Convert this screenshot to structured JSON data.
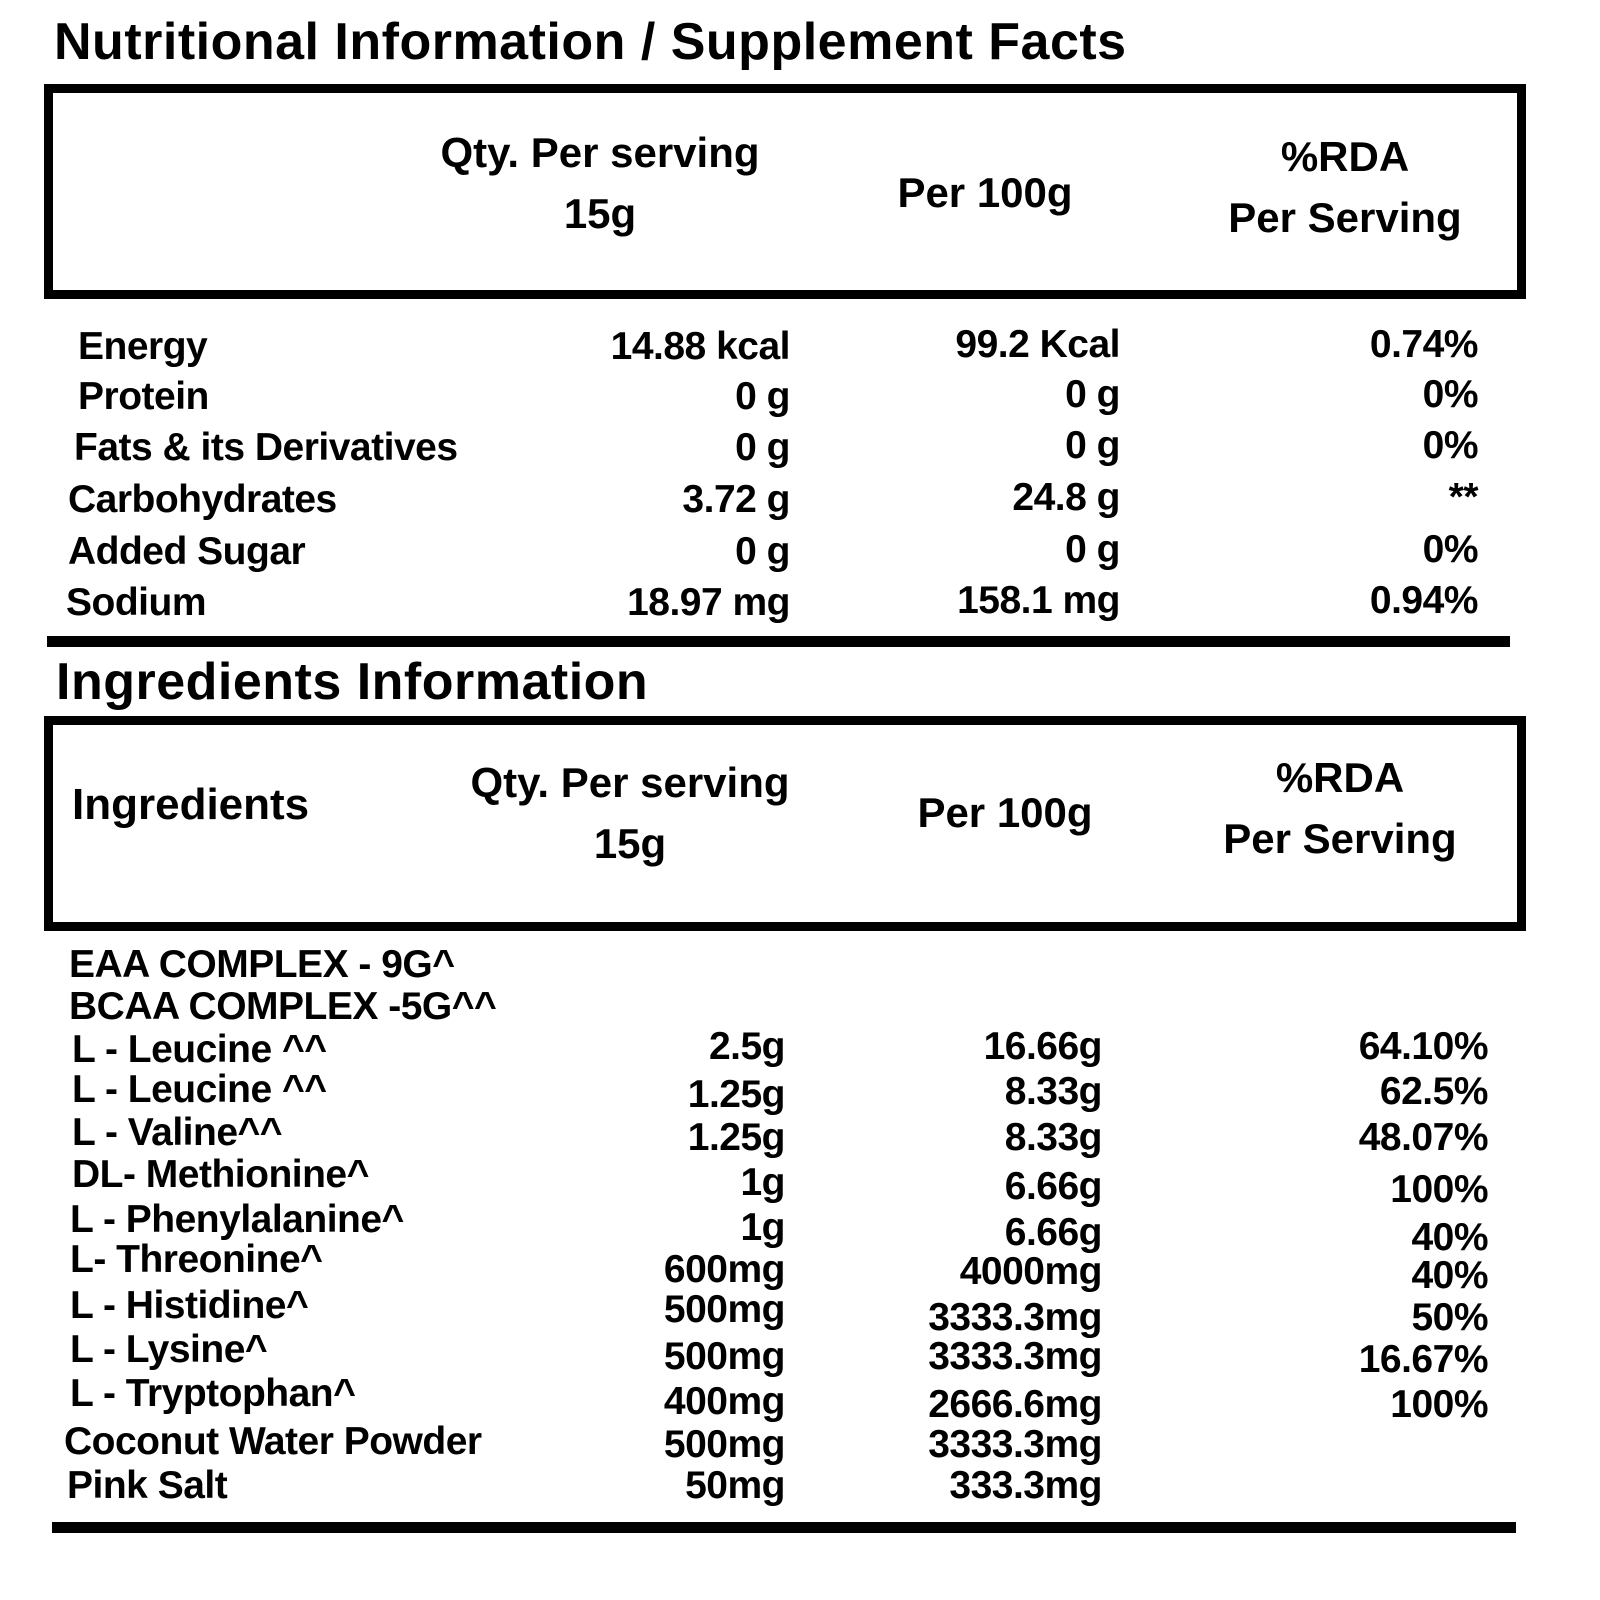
{
  "nutrition": {
    "title": "Nutritional Information / Supplement Facts",
    "header": {
      "qty_line1": "Qty. Per serving",
      "qty_line2": "15g",
      "per100": "Per 100g",
      "rda_line1": "%RDA",
      "rda_line2": "Per Serving"
    },
    "rows": [
      {
        "name": "Energy",
        "serving": "14.88 kcal",
        "per100": "99.2 Kcal",
        "rda": "0.74%"
      },
      {
        "name": "Protein",
        "serving": "0 g",
        "per100": "0 g",
        "rda": "0%"
      },
      {
        "name": "Fats & its Derivatives",
        "serving": "0 g",
        "per100": "0 g",
        "rda": "0%"
      },
      {
        "name": "Carbohydrates",
        "serving": "3.72 g",
        "per100": "24.8 g",
        "rda": "**"
      },
      {
        "name": "Added Sugar",
        "serving": "0 g",
        "per100": "0 g",
        "rda": "0%"
      },
      {
        "name": "Sodium",
        "serving": "18.97 mg",
        "per100": "158.1 mg",
        "rda": "0.94%"
      }
    ]
  },
  "ingredients": {
    "title": "Ingredients Information",
    "header": {
      "name": "Ingredients",
      "qty_line1": "Qty. Per serving",
      "qty_line2": "15g",
      "per100": "Per 100g",
      "rda_line1": "%RDA",
      "rda_line2": "Per Serving"
    },
    "groups": [
      {
        "name": "EAA COMPLEX - 9G^"
      },
      {
        "name": "BCAA COMPLEX -5G^^"
      }
    ],
    "rows": [
      {
        "name": "L - Leucine ^^",
        "serving": "2.5g",
        "per100": "16.66g",
        "rda": "64.10%"
      },
      {
        "name": "L - Leucine ^^",
        "serving": "1.25g",
        "per100": "8.33g",
        "rda": "62.5%"
      },
      {
        "name": "L - Valine^^",
        "serving": "1.25g",
        "per100": "8.33g",
        "rda": "48.07%"
      },
      {
        "name": "DL- Methionine^",
        "serving": "1g",
        "per100": "6.66g",
        "rda": "100%"
      },
      {
        "name": "L - Phenylalanine^",
        "serving": "1g",
        "per100": "6.66g",
        "rda": "40%"
      },
      {
        "name": "L- Threonine^",
        "serving": "600mg",
        "per100": "4000mg",
        "rda": "40%"
      },
      {
        "name": "L - Histidine^",
        "serving": "500mg",
        "per100": "3333.3mg",
        "rda": "50%"
      },
      {
        "name": "L - Lysine^",
        "serving": "500mg",
        "per100": "3333.3mg",
        "rda": "16.67%"
      },
      {
        "name": "L - Tryptophan^",
        "serving": "400mg",
        "per100": "2666.6mg",
        "rda": "100%"
      },
      {
        "name": "Coconut Water Powder",
        "serving": "500mg",
        "per100": "3333.3mg",
        "rda": ""
      },
      {
        "name": "Pink Salt",
        "serving": "50mg",
        "per100": "333.3mg",
        "rda": ""
      }
    ]
  }
}
